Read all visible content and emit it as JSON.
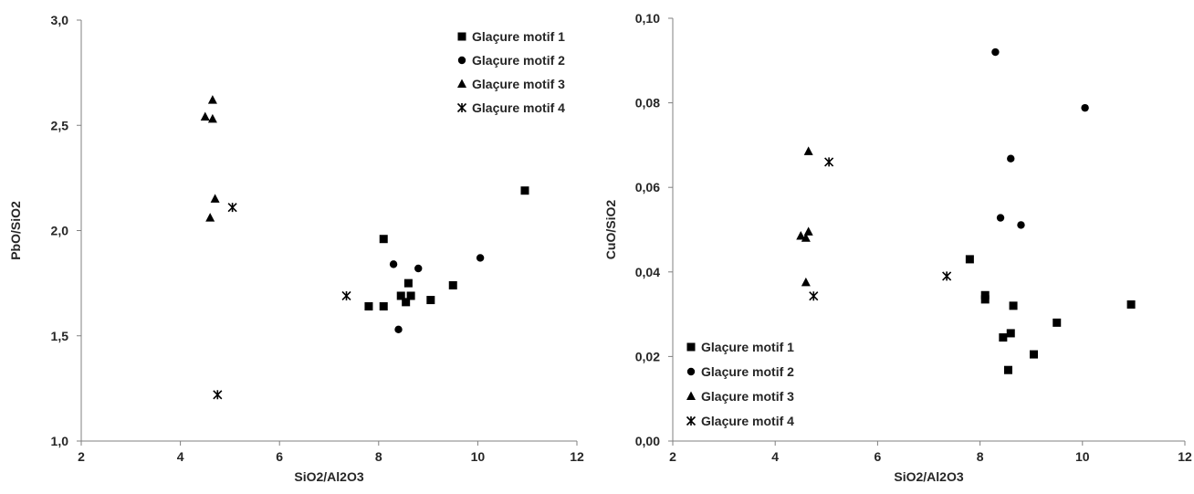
{
  "chart_data": [
    {
      "type": "scatter",
      "xlabel": "SiO2/Al2O3",
      "ylabel": "PbO/SiO2",
      "xlim": [
        2,
        12
      ],
      "ylim": [
        1.0,
        3.0
      ],
      "xticks": [
        "2",
        "4",
        "6",
        "8",
        "10",
        "12"
      ],
      "yticks": [
        "1,0",
        "1,5",
        "2,0",
        "2,5",
        "3,0"
      ],
      "grid": false,
      "legend_position": "top-right",
      "series": [
        {
          "name": "Glaçure motif 1",
          "marker": "square",
          "points": [
            [
              8.1,
              1.96
            ],
            [
              10.95,
              2.19
            ],
            [
              9.5,
              1.74
            ],
            [
              8.6,
              1.75
            ],
            [
              7.8,
              1.64
            ],
            [
              8.1,
              1.64
            ],
            [
              8.45,
              1.69
            ],
            [
              8.55,
              1.66
            ],
            [
              8.65,
              1.69
            ],
            [
              9.05,
              1.67
            ]
          ]
        },
        {
          "name": "Glaçure motif 2",
          "marker": "circle",
          "points": [
            [
              8.3,
              1.84
            ],
            [
              8.8,
              1.82
            ],
            [
              10.05,
              1.87
            ],
            [
              8.4,
              1.53
            ]
          ]
        },
        {
          "name": "Glaçure motif 3",
          "marker": "triangle",
          "points": [
            [
              4.65,
              2.62
            ],
            [
              4.5,
              2.54
            ],
            [
              4.65,
              2.53
            ],
            [
              4.7,
              2.15
            ],
            [
              4.6,
              2.06
            ]
          ]
        },
        {
          "name": "Glaçure motif 4",
          "marker": "star",
          "points": [
            [
              5.05,
              2.11
            ],
            [
              7.35,
              1.69
            ],
            [
              4.75,
              1.22
            ]
          ]
        }
      ]
    },
    {
      "type": "scatter",
      "xlabel": "SiO2/Al2O3",
      "ylabel": "CuO/SiO2",
      "xlim": [
        2,
        12
      ],
      "ylim": [
        0.0,
        0.1
      ],
      "xticks": [
        "2",
        "4",
        "6",
        "8",
        "10",
        "12"
      ],
      "yticks": [
        "0,00",
        "0,02",
        "0,04",
        "0,06",
        "0,08",
        "0,10"
      ],
      "grid": false,
      "legend_position": "bottom-left",
      "series": [
        {
          "name": "Glaçure motif 1",
          "marker": "square",
          "points": [
            [
              7.8,
              0.043
            ],
            [
              8.1,
              0.0345
            ],
            [
              8.1,
              0.0335
            ],
            [
              8.65,
              0.032
            ],
            [
              10.95,
              0.0323
            ],
            [
              9.5,
              0.028
            ],
            [
              8.6,
              0.0255
            ],
            [
              8.45,
              0.0245
            ],
            [
              9.05,
              0.0205
            ],
            [
              8.55,
              0.0168
            ]
          ]
        },
        {
          "name": "Glaçure motif 2",
          "marker": "circle",
          "points": [
            [
              8.3,
              0.092
            ],
            [
              10.05,
              0.0788
            ],
            [
              8.6,
              0.0668
            ],
            [
              8.4,
              0.0528
            ],
            [
              8.8,
              0.0511
            ]
          ]
        },
        {
          "name": "Glaçure motif 3",
          "marker": "triangle",
          "points": [
            [
              4.65,
              0.0685
            ],
            [
              4.65,
              0.0495
            ],
            [
              4.5,
              0.0485
            ],
            [
              4.6,
              0.048
            ],
            [
              4.6,
              0.0375
            ]
          ]
        },
        {
          "name": "Glaçure motif 4",
          "marker": "star",
          "points": [
            [
              5.05,
              0.066
            ],
            [
              7.35,
              0.039
            ],
            [
              4.75,
              0.0343
            ]
          ]
        }
      ]
    }
  ]
}
